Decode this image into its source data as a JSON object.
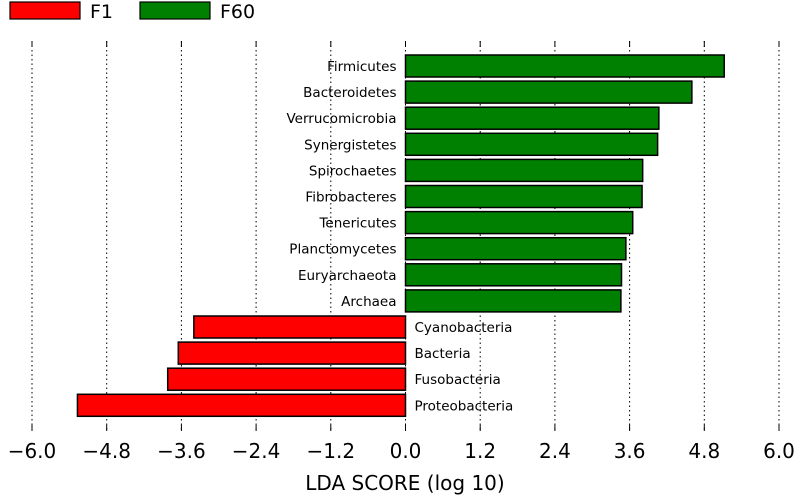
{
  "chart_data": {
    "type": "bar",
    "orientation": "horizontal",
    "title": "",
    "xlabel": "LDA SCORE (log 10)",
    "ylabel": "",
    "xlim": [
      -6.0,
      6.0
    ],
    "xticks": [
      -6.0,
      -4.8,
      -3.6,
      -2.4,
      -1.2,
      0.0,
      1.2,
      2.4,
      3.6,
      4.8,
      6.0
    ],
    "xtick_labels": [
      "−6.0",
      "−4.8",
      "−3.6",
      "−2.4",
      "−1.2",
      "0.0",
      "1.2",
      "2.4",
      "3.6",
      "4.8",
      "6.0"
    ],
    "grid": "vertical dotted",
    "legend_position": "top-left, above plot",
    "series": [
      {
        "name": "F1",
        "color": "#ff0000",
        "categories": [
          "Cyanobacteria",
          "Bacteria",
          "Fusobacteria",
          "Proteobacteria"
        ],
        "values": [
          -3.4,
          -3.65,
          -3.82,
          -5.27
        ]
      },
      {
        "name": "F60",
        "color": "#008000",
        "categories": [
          "Firmicutes",
          "Bacteroidetes",
          "Verrucomicrobia",
          "Synergistetes",
          "Spirochaetes",
          "Fibrobacteres",
          "Tenericutes",
          "Planctomycetes",
          "Euryarchaeota",
          "Archaea"
        ],
        "values": [
          5.12,
          4.6,
          4.07,
          4.05,
          3.81,
          3.8,
          3.65,
          3.54,
          3.47,
          3.46
        ]
      }
    ],
    "bar_order": [
      "Firmicutes",
      "Bacteroidetes",
      "Verrucomicrobia",
      "Synergistetes",
      "Spirochaetes",
      "Fibrobacteres",
      "Tenericutes",
      "Planctomycetes",
      "Euryarchaeota",
      "Archaea",
      "Cyanobacteria",
      "Bacteria",
      "Fusobacteria",
      "Proteobacteria"
    ]
  }
}
